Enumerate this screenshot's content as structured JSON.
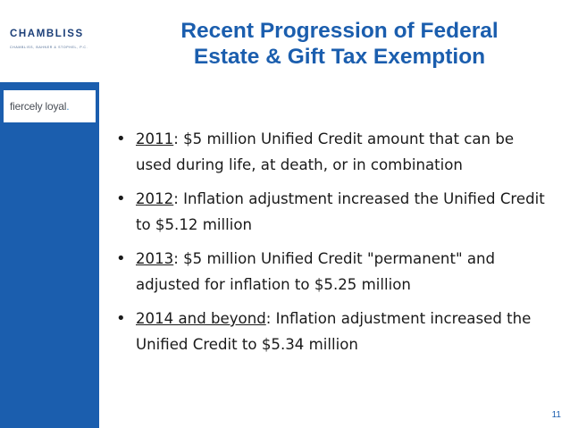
{
  "sidebar": {
    "logo": {
      "wordmark": "CHAMBLISS",
      "subtext": "CHAMBLISS, BAHNER & STOPHEL, P.C."
    },
    "tagline": {
      "main": "fiercely loyal",
      "accent": "."
    }
  },
  "slide": {
    "title_line1": "Recent Progression of Federal",
    "title_line2": "Estate & Gift Tax Exemption",
    "bullets": [
      {
        "year": "2011",
        "text": ":  $5 million Unified Credit amount that can be used during life, at death, or in combination"
      },
      {
        "year": "2012",
        "text": ":  Inflation adjustment increased the Unified Credit to $5.12 million"
      },
      {
        "year": "2013",
        "text": ":  $5 million Unified Credit \"permanent\" and adjusted for inflation to $5.25 million"
      },
      {
        "year": "2014 and beyond",
        "text": ": Inflation adjustment increased the Unified Credit to $5.34 million"
      }
    ],
    "page_number": "11"
  },
  "colors": {
    "brand_blue": "#1b5eae",
    "text": "#1a1a1a"
  }
}
